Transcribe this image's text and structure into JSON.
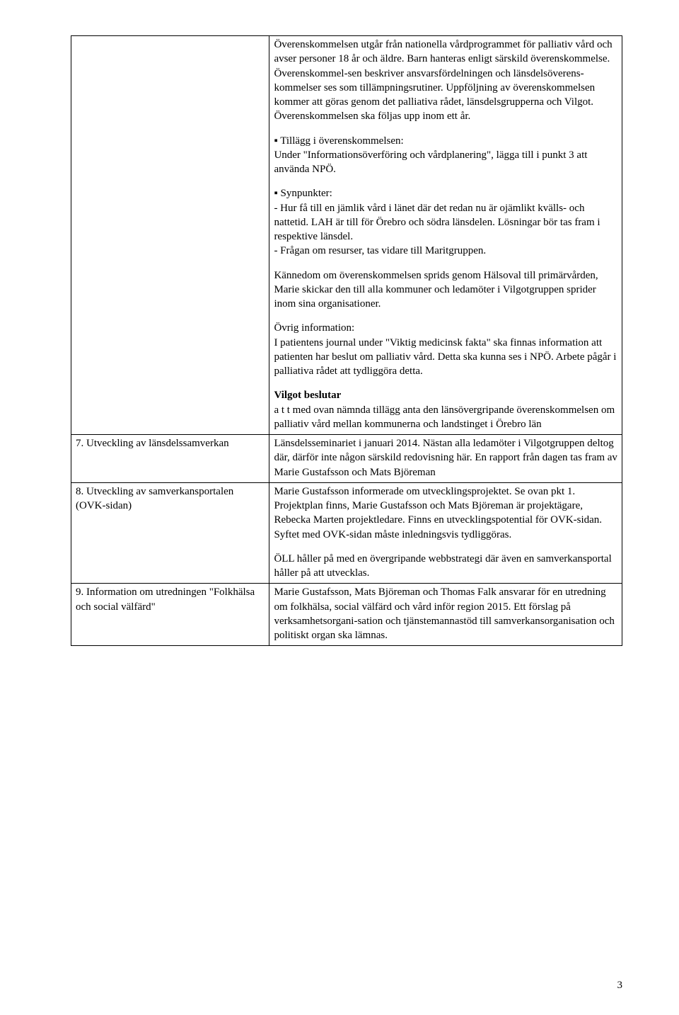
{
  "row0": {
    "left": "",
    "p1": "Överenskommelsen utgår från nationella vårdprogrammet för palliativ vård och avser personer 18 år och äldre. Barn hanteras enligt särskild överenskommelse. Överenskommel-sen beskriver ansvarsfördelningen och länsdelsöverens-kommelser ses som tillämpningsrutiner. Uppföljning av överenskommelsen kommer att göras genom det palliativa rådet, länsdelsgrupperna och Vilgot. Överenskommelsen ska följas upp inom ett år.",
    "p2": "▪ Tillägg i överenskommelsen:\nUnder \"Informationsöverföring och vårdplanering\", lägga till i punkt 3 att använda NPÖ.",
    "p3": "▪ Synpunkter:\n- Hur få till en jämlik vård i länet där det redan nu är ojämlikt kvälls- och nattetid. LAH är till för Örebro och södra länsdelen. Lösningar bör tas fram i respektive länsdel.\n- Frågan om resurser, tas vidare till Maritgruppen.",
    "p4": "Kännedom om överenskommelsen sprids genom Hälsoval till primärvården, Marie skickar den till alla kommuner och ledamöter i Vilgotgruppen sprider inom sina organisationer.",
    "p5": "Övrig information:\nI patientens journal under \"Viktig medicinsk fakta\" ska finnas information att patienten har beslut om palliativ vård. Detta ska kunna ses i NPÖ. Arbete pågår i palliativa rådet att tydliggöra detta.",
    "p6_bold": "Vilgot beslutar",
    "p6_rest": "a t t  med ovan nämnda tillägg anta den länsövergripande överenskommelsen om palliativ vård mellan kommunerna och landstinget i Örebro län"
  },
  "row1": {
    "left": "7. Utveckling av länsdelssamverkan",
    "right": "Länsdelsseminariet i januari 2014. Nästan alla ledamöter i Vilgotgruppen deltog där, därför inte någon särskild redovisning här. En rapport från dagen tas fram av Marie Gustafsson och Mats Björeman"
  },
  "row2": {
    "left": "8. Utveckling av samverkansportalen (OVK-sidan)",
    "p1": "Marie Gustafsson informerade om utvecklingsprojektet. Se ovan pkt 1. Projektplan finns, Marie Gustafsson och Mats Björeman är projektägare, Rebecka Marten projektledare. Finns en utvecklingspotential för OVK-sidan. Syftet med OVK-sidan måste inledningsvis tydliggöras.",
    "p2": "ÖLL håller på med en övergripande webbstrategi där även en samverkansportal håller på att utvecklas."
  },
  "row3": {
    "left": "9. Information om utredningen \"Folkhälsa och social välfärd\"",
    "right": "Marie Gustafsson, Mats Björeman och Thomas Falk ansvarar för en utredning om folkhälsa, social välfärd och vård inför region 2015. Ett förslag på verksamhetsorgani-sation och tjänstemannastöd till samverkansorganisation och politiskt organ ska lämnas."
  },
  "page_number": "3"
}
